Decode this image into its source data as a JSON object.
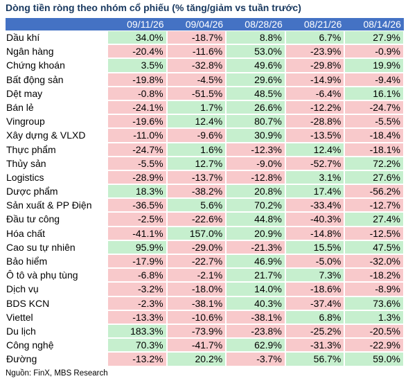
{
  "title": "Dòng tiền ròng theo nhóm cổ phiếu (% tăng/giảm vs tuần trước)",
  "table": {
    "header": [
      "09/11/26",
      "09/04/26",
      "08/28/26",
      "08/21/26",
      "08/14/26"
    ],
    "rows": [
      {
        "label": "Dầu khí",
        "cells": [
          "34.0%",
          "-18.7%",
          "8.8%",
          "6.7%",
          "27.9%"
        ]
      },
      {
        "label": "Ngân hàng",
        "cells": [
          "-20.4%",
          "-11.6%",
          "53.0%",
          "-23.9%",
          "-0.9%"
        ]
      },
      {
        "label": "Chứng khoán",
        "cells": [
          "3.5%",
          "-32.8%",
          "49.6%",
          "-29.8%",
          "19.9%"
        ]
      },
      {
        "label": "Bất động sản",
        "cells": [
          "-19.8%",
          "-4.5%",
          "29.6%",
          "-14.9%",
          "-9.4%"
        ]
      },
      {
        "label": "Dệt may",
        "cells": [
          "-0.8%",
          "-51.5%",
          "48.5%",
          "-6.4%",
          "16.1%"
        ]
      },
      {
        "label": "Bán lẻ",
        "cells": [
          "-24.1%",
          "1.7%",
          "26.6%",
          "-12.2%",
          "-24.7%"
        ]
      },
      {
        "label": "Vingroup",
        "cells": [
          "-19.6%",
          "12.4%",
          "80.7%",
          "-28.8%",
          "-5.5%"
        ]
      },
      {
        "label": "Xây dựng & VLXD",
        "cells": [
          "-11.0%",
          "-9.6%",
          "30.9%",
          "-13.5%",
          "-18.4%"
        ]
      },
      {
        "label": "Thực phẩm",
        "cells": [
          "-24.7%",
          "1.6%",
          "-12.3%",
          "12.4%",
          "-18.1%"
        ]
      },
      {
        "label": "Thủy sản",
        "cells": [
          "-5.5%",
          "12.7%",
          "-9.0%",
          "-52.7%",
          "72.2%"
        ]
      },
      {
        "label": "Logistics",
        "cells": [
          "-28.9%",
          "-13.7%",
          "-12.8%",
          "3.1%",
          "27.6%"
        ]
      },
      {
        "label": "Dược phẩm",
        "cells": [
          "18.3%",
          "-38.2%",
          "20.8%",
          "17.4%",
          "-56.2%"
        ]
      },
      {
        "label": "Sản xuất & PP Điện",
        "cells": [
          "-36.5%",
          "5.6%",
          "70.2%",
          "-33.4%",
          "-12.7%"
        ]
      },
      {
        "label": "Đầu tư công",
        "cells": [
          "-2.5%",
          "-22.6%",
          "44.8%",
          "-40.3%",
          "27.4%"
        ]
      },
      {
        "label": "Hóa chất",
        "cells": [
          "-41.1%",
          "157.0%",
          "20.9%",
          "-14.8%",
          "-12.5%"
        ]
      },
      {
        "label": "Cao su tự nhiên",
        "cells": [
          "95.9%",
          "-29.0%",
          "-21.3%",
          "15.5%",
          "47.5%"
        ]
      },
      {
        "label": "Bảo hiểm",
        "cells": [
          "-17.9%",
          "-22.7%",
          "46.9%",
          "-5.0%",
          "-32.0%"
        ]
      },
      {
        "label": "Ô tô và phụ tùng",
        "cells": [
          "-6.8%",
          "-2.1%",
          "21.7%",
          "7.3%",
          "-18.2%"
        ]
      },
      {
        "label": "Dịch vụ",
        "cells": [
          "-3.2%",
          "-18.0%",
          "14.0%",
          "-18.6%",
          "-8.9%"
        ]
      },
      {
        "label": "BDS KCN",
        "cells": [
          "-2.3%",
          "-38.1%",
          "40.3%",
          "-37.4%",
          "73.6%"
        ]
      },
      {
        "label": "Viettel",
        "cells": [
          "-13.3%",
          "-10.6%",
          "-38.1%",
          "6.8%",
          "1.3%"
        ]
      },
      {
        "label": "Du lịch",
        "cells": [
          "183.3%",
          "-73.9%",
          "-23.8%",
          "-25.2%",
          "-20.5%"
        ]
      },
      {
        "label": "Công nghệ",
        "cells": [
          "70.3%",
          "-41.7%",
          "62.9%",
          "-31.3%",
          "-22.9%"
        ]
      },
      {
        "label": "Đường",
        "cells": [
          "-13.2%",
          "20.2%",
          "-3.7%",
          "56.7%",
          "59.0%"
        ]
      }
    ]
  },
  "source": "Nguồn: FinX, MBS Research"
}
